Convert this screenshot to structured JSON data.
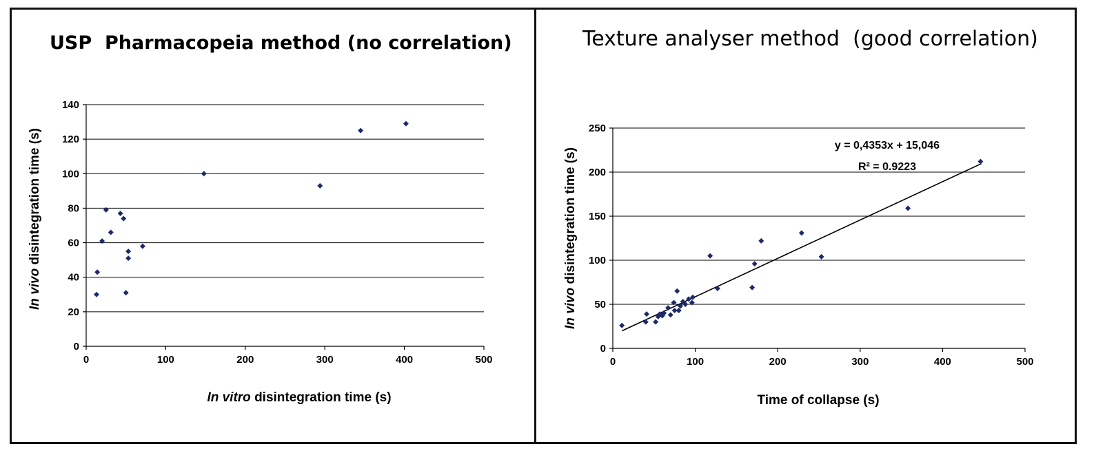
{
  "chart_data": [
    {
      "type": "scatter",
      "title": "USP  Pharmacopeia method (no correlation)",
      "xlabel_italic": "In vitro",
      "xlabel_rest": " disintegration time (s)",
      "ylabel_italic": "In vivo",
      "ylabel_rest": " disintegration time (s)",
      "xlim": [
        0,
        500
      ],
      "ylim": [
        0,
        140
      ],
      "xticks": [
        0,
        100,
        200,
        300,
        400,
        500
      ],
      "yticks": [
        0,
        20,
        40,
        60,
        80,
        100,
        120,
        140
      ],
      "grid": true,
      "marker_color": "#1f2a6b",
      "points": [
        {
          "x": 13,
          "y": 30
        },
        {
          "x": 14,
          "y": 43
        },
        {
          "x": 20,
          "y": 61
        },
        {
          "x": 25,
          "y": 79
        },
        {
          "x": 31,
          "y": 66
        },
        {
          "x": 43,
          "y": 77
        },
        {
          "x": 47,
          "y": 74
        },
        {
          "x": 50,
          "y": 31
        },
        {
          "x": 53,
          "y": 55
        },
        {
          "x": 53,
          "y": 51
        },
        {
          "x": 71,
          "y": 58
        },
        {
          "x": 148,
          "y": 100
        },
        {
          "x": 294,
          "y": 93
        },
        {
          "x": 345,
          "y": 125
        },
        {
          "x": 402,
          "y": 129
        }
      ]
    },
    {
      "type": "scatter",
      "title": "Texture analyser method  (good correlation)",
      "xlabel": "Time of collapse (s)",
      "ylabel_italic": "In vivo",
      "ylabel_rest": " disintegration time (s)",
      "xlim": [
        0,
        500
      ],
      "ylim": [
        0,
        250
      ],
      "xticks": [
        0,
        100,
        200,
        300,
        400,
        500
      ],
      "yticks": [
        0,
        50,
        100,
        150,
        200,
        250
      ],
      "grid": true,
      "marker_color": "#1f2a6b",
      "trendline": {
        "slope": 0.4353,
        "intercept": 15.046,
        "x_range": [
          11,
          447
        ]
      },
      "equation": "y = 0,4353x + 15,046",
      "r_squared": "R² = 0.9223",
      "points": [
        {
          "x": 11,
          "y": 26
        },
        {
          "x": 40,
          "y": 30
        },
        {
          "x": 41,
          "y": 39
        },
        {
          "x": 52,
          "y": 30
        },
        {
          "x": 55,
          "y": 36
        },
        {
          "x": 57,
          "y": 39
        },
        {
          "x": 60,
          "y": 37
        },
        {
          "x": 62,
          "y": 40
        },
        {
          "x": 67,
          "y": 46
        },
        {
          "x": 70,
          "y": 38
        },
        {
          "x": 74,
          "y": 52
        },
        {
          "x": 75,
          "y": 43
        },
        {
          "x": 78,
          "y": 65
        },
        {
          "x": 80,
          "y": 43
        },
        {
          "x": 82,
          "y": 48
        },
        {
          "x": 85,
          "y": 53
        },
        {
          "x": 88,
          "y": 50
        },
        {
          "x": 92,
          "y": 56
        },
        {
          "x": 96,
          "y": 52
        },
        {
          "x": 97,
          "y": 58
        },
        {
          "x": 118,
          "y": 105
        },
        {
          "x": 127,
          "y": 68
        },
        {
          "x": 169,
          "y": 69
        },
        {
          "x": 172,
          "y": 96
        },
        {
          "x": 180,
          "y": 122
        },
        {
          "x": 229,
          "y": 131
        },
        {
          "x": 253,
          "y": 104
        },
        {
          "x": 358,
          "y": 159
        },
        {
          "x": 446,
          "y": 212
        }
      ]
    }
  ]
}
